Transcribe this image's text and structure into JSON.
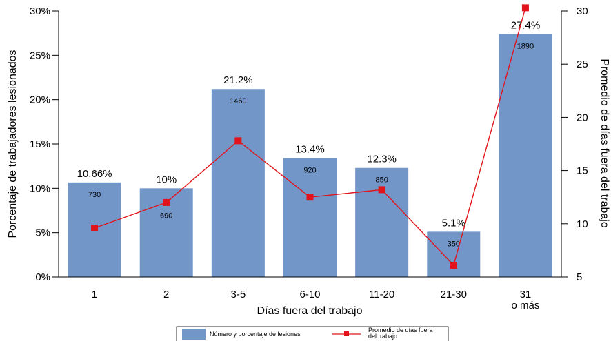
{
  "chart_data": {
    "type": "bar",
    "categories": [
      "1",
      "2",
      "3-5",
      "6-10",
      "11-20",
      "21-30",
      "31"
    ],
    "category_sublabels": [
      "",
      "",
      "",
      "",
      "",
      "",
      "o más"
    ],
    "series": [
      {
        "name": "Número y porcentaje de lesiones",
        "type": "bar",
        "axis": "left",
        "values": [
          10.66,
          10,
          21.2,
          13.4,
          12.3,
          5.1,
          27.4
        ],
        "value_labels": [
          "10.66%",
          "10%",
          "21.2%",
          "13.4%",
          "12.3%",
          "5.1%",
          "27.4%"
        ],
        "counts": [
          "730",
          "690",
          "1460",
          "920",
          "850",
          "350",
          "1890"
        ],
        "color": "#7396c9"
      },
      {
        "name": "Promedio de días fuera del trabajo",
        "type": "line",
        "axis": "right",
        "values": [
          9.6,
          12,
          17.8,
          12.5,
          13.2,
          6.1,
          30.3
        ],
        "color": "#e0141a"
      }
    ],
    "xlabel": "Días fuera del trabajo",
    "ylabel_left": "Porcentaje de trabajadores lesionados",
    "ylabel_right": "Promedio de días fuera del trabajo",
    "ylim_left": [
      0,
      30
    ],
    "yticks_left": [
      "0%",
      "5%",
      "10%",
      "15%",
      "20%",
      "25%",
      "30%"
    ],
    "ylim_right": [
      5,
      30
    ],
    "yticks_right": [
      "5",
      "10",
      "15",
      "20",
      "25",
      "30"
    ],
    "grid": false,
    "legend_position": "bottom-center"
  }
}
